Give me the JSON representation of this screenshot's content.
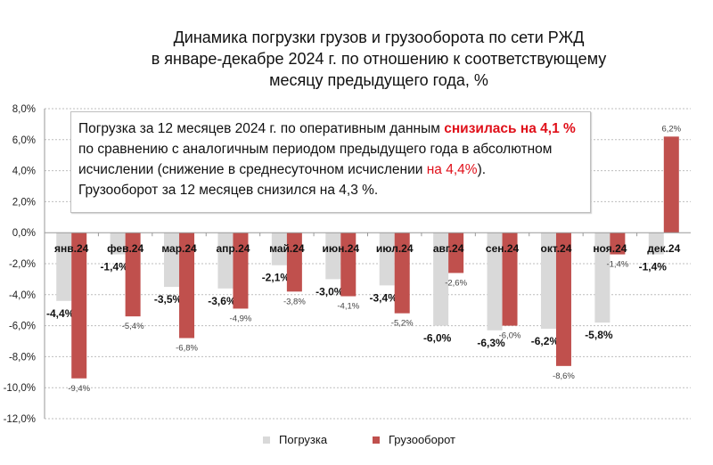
{
  "title": [
    "Динамика  погрузки грузов и грузооборота по сети РЖД",
    "в январе-декабре 2024 г. по отношению к соответствующему",
    "месяцу предыдущего года, %"
  ],
  "note": {
    "p1a": "Погрузка за 12 месяцев 2024 г. по оперативным данным ",
    "p1b": "снизилась на 4,1 %",
    "p1c": " по сравнению с аналогичным периодом предыдущего года в  абсолютном исчислении (снижение в среднесуточном исчислении ",
    "p1d": "на 4,4%",
    "p1e": ").",
    "p2": "Грузооборот за 12 месяцев снизился на 4,3 %."
  },
  "chart_data": {
    "type": "bar",
    "categories": [
      "янв.24",
      "фев.24",
      "мар.24",
      "апр.24",
      "май.24",
      "июн.24",
      "июл.24",
      "авг.24",
      "сен.24",
      "окт.24",
      "ноя.24",
      "дек.24"
    ],
    "series": [
      {
        "name": "Погрузка",
        "color": "#d9d9d9",
        "values": [
          -4.4,
          -1.4,
          -3.5,
          -3.6,
          -2.1,
          -3.0,
          -3.4,
          -6.0,
          -6.3,
          -6.2,
          -5.8,
          -1.4
        ]
      },
      {
        "name": "Грузооборот",
        "color": "#c0504d",
        "values": [
          -9.4,
          -5.4,
          -6.8,
          -4.9,
          -3.8,
          -4.1,
          -5.2,
          -2.6,
          -6.0,
          -8.6,
          -1.4,
          6.2
        ]
      }
    ],
    "ylim": [
      -12,
      8
    ],
    "yticks": [
      "-12,0%",
      "-10,0%",
      "-8,0%",
      "-6,0%",
      "-4,0%",
      "-2,0%",
      "0,0%",
      "2,0%",
      "4,0%",
      "6,0%",
      "8,0%"
    ],
    "grid": true,
    "legend": "bottom"
  }
}
